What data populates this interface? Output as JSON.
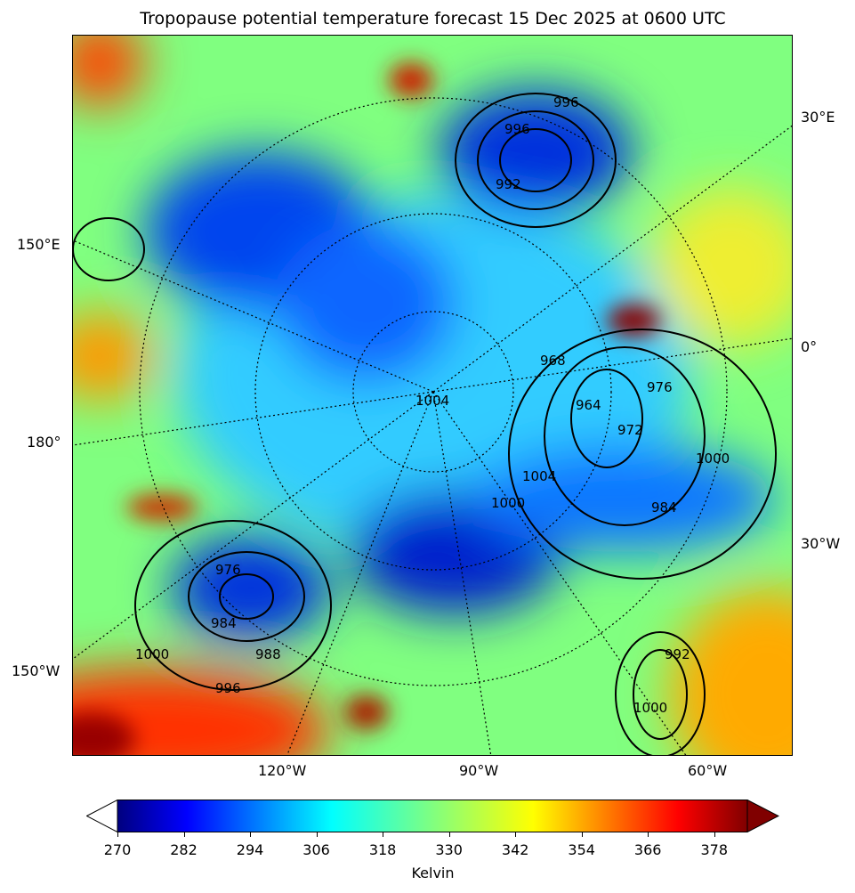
{
  "title": "Tropopause potential temperature forecast 15 Dec 2025 at 0600 UTC",
  "map": {
    "projection": "polar stereographic (north)",
    "lon_labels_right": [
      "30°E",
      "0°",
      "30°W"
    ],
    "lon_labels_left": [
      "150°E",
      "180°",
      "150°W"
    ],
    "lon_labels_bottom": [
      "120°W",
      "90°W",
      "60°W"
    ],
    "pressure_contour_labels": [
      "1004",
      "996",
      "992",
      "1000",
      "976",
      "984",
      "988",
      "996",
      "1000",
      "968",
      "964",
      "972",
      "976",
      "984",
      "1004",
      "1000",
      "996",
      "992",
      "1000"
    ],
    "marker_color": "#cc00cc",
    "coastline_color": "#444444"
  },
  "colorbar": {
    "colormap": "jet",
    "ticks": [
      "270",
      "282",
      "294",
      "306",
      "318",
      "330",
      "342",
      "354",
      "366",
      "378"
    ],
    "min": 270,
    "max": 384,
    "extend": "both",
    "under_color": "#ffffff",
    "over_color": "#800000",
    "label": "Kelvin"
  }
}
